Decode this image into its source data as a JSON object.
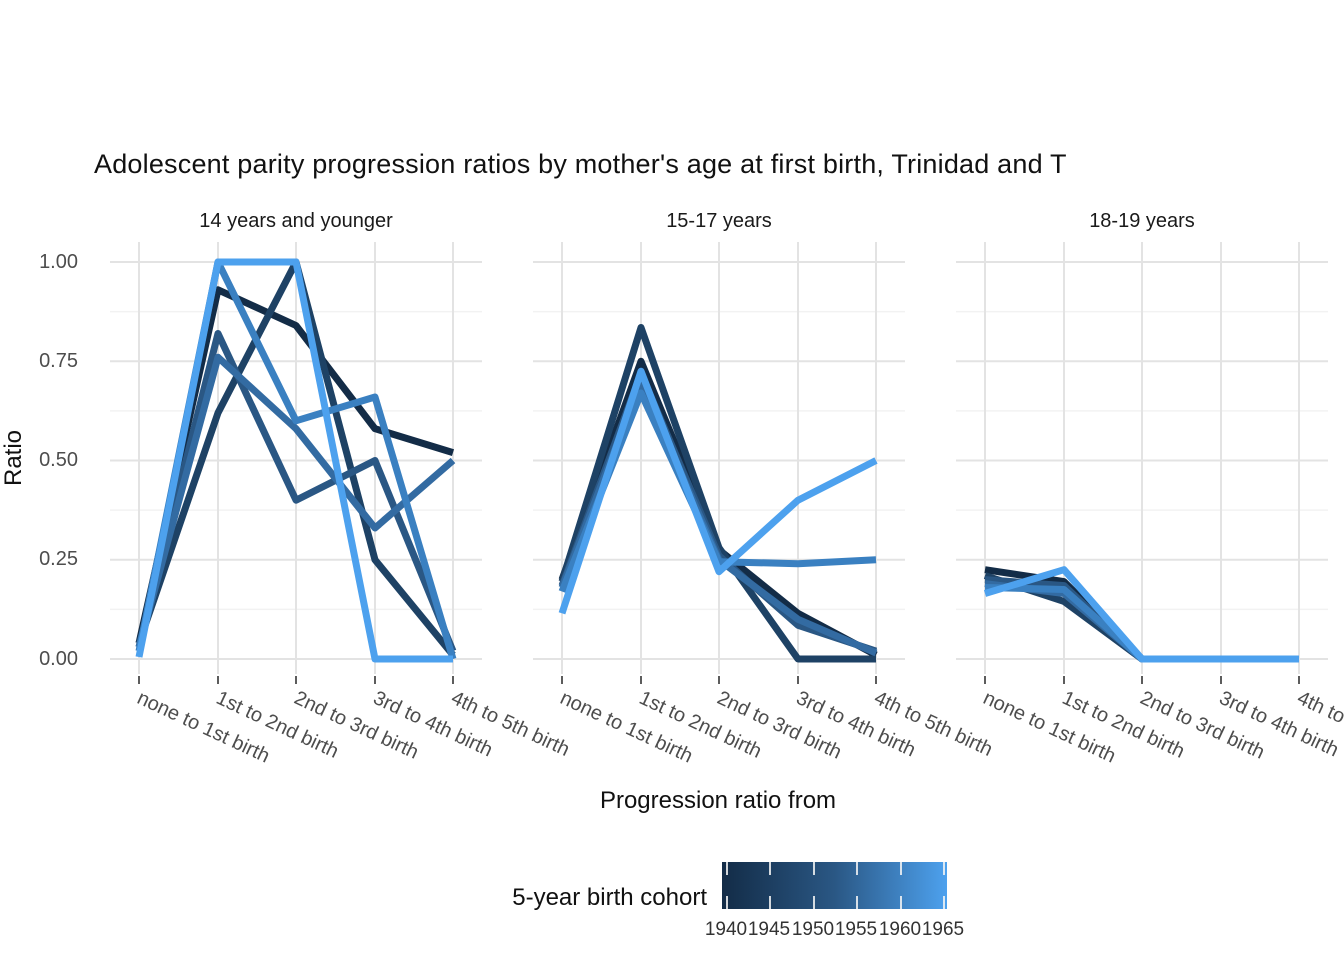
{
  "title": "Adolescent parity progression ratios by mother's age at first birth,  Trinidad and T",
  "y_axis": {
    "label": "Ratio",
    "tick_labels": [
      "1.00",
      "0.75",
      "0.50",
      "0.25",
      "0.00"
    ]
  },
  "x_axis": {
    "label": "Progression ratio from"
  },
  "legend": {
    "title": "5-year birth cohort",
    "tick_labels": [
      "1940",
      "1945",
      "1950",
      "1955",
      "1960",
      "1965"
    ]
  },
  "colors": {
    "cohort_1940": "#132c47",
    "cohort_1945": "#1e4265",
    "cohort_1950": "#2a5784",
    "cohort_1955": "#336ba2",
    "cohort_1960": "#3a80c1",
    "cohort_1965": "#4da1ee",
    "grid_major": "#e3e3e3",
    "grid_minor": "#f2f2f2",
    "tick_mark": "#333333",
    "colorbar_gradient": [
      "#132c47",
      "#2a5784",
      "#4da1ee"
    ]
  },
  "chart_data": {
    "type": "line",
    "title": "Adolescent parity progression ratios by mother's age at first birth,  Trinidad and T",
    "xlabel": "Progression ratio from",
    "ylabel": "Ratio",
    "ylim": [
      0,
      1.0
    ],
    "yticks": [
      0.0,
      0.25,
      0.5,
      0.75,
      1.0
    ],
    "grid": "major and minor horizontal, major vertical, light gray on white",
    "legend_title": "5-year birth cohort",
    "legend_type": "continuous colorbar, dark navy 1940 to light blue 1965, below plot",
    "categories": [
      "none to 1st birth",
      "1st to 2nd birth",
      "2nd to 3rd birth",
      "3rd to 4th birth",
      "4th to 5th birth"
    ],
    "cohorts": [
      "1940",
      "1945",
      "1950",
      "1955",
      "1960",
      "1965"
    ],
    "facets": [
      {
        "label": "14 years and younger",
        "series": [
          {
            "name": "1940",
            "values": [
              0.04,
              0.93,
              0.84,
              0.58,
              0.52
            ]
          },
          {
            "name": "1945",
            "values": [
              0.04,
              0.62,
              1.0,
              0.25,
              0.01
            ]
          },
          {
            "name": "1950",
            "values": [
              0.03,
              0.82,
              0.4,
              0.5,
              0.02
            ]
          },
          {
            "name": "1955",
            "values": [
              0.03,
              0.76,
              0.58,
              0.33,
              0.5
            ]
          },
          {
            "name": "1960",
            "values": [
              0.02,
              1.0,
              0.6,
              0.66,
              0.0
            ]
          },
          {
            "name": "1965",
            "values": [
              0.005,
              1.0,
              1.0,
              0.0,
              0.0
            ]
          }
        ]
      },
      {
        "label": "15-17 years",
        "series": [
          {
            "name": "1940",
            "values": [
              0.2,
              0.75,
              0.275,
              0.115,
              0.01
            ]
          },
          {
            "name": "1945",
            "values": [
              0.195,
              0.835,
              0.28,
              0.0,
              0.0
            ]
          },
          {
            "name": "1950",
            "values": [
              0.185,
              0.72,
              0.26,
              0.085,
              0.02
            ]
          },
          {
            "name": "1955",
            "values": [
              0.18,
              0.7,
              0.25,
              0.1,
              0.015
            ]
          },
          {
            "name": "1960",
            "values": [
              0.17,
              0.67,
              0.245,
              0.24,
              0.25
            ]
          },
          {
            "name": "1965",
            "values": [
              0.115,
              0.725,
              0.22,
              0.4,
              0.5
            ]
          }
        ]
      },
      {
        "label": "18-19 years",
        "series": [
          {
            "name": "1940",
            "values": [
              0.225,
              0.195,
              0.0,
              0.0,
              0.0
            ]
          },
          {
            "name": "1945",
            "values": [
              0.21,
              0.145,
              0.0,
              0.0,
              0.0
            ]
          },
          {
            "name": "1950",
            "values": [
              0.2,
              0.185,
              0.0,
              0.0,
              0.0
            ]
          },
          {
            "name": "1955",
            "values": [
              0.19,
              0.165,
              0.0,
              0.0,
              0.0
            ]
          },
          {
            "name": "1960",
            "values": [
              0.18,
              0.175,
              0.0,
              0.0,
              0.0
            ]
          },
          {
            "name": "1965",
            "values": [
              0.165,
              0.225,
              0.0,
              0.0,
              0.0
            ]
          }
        ]
      }
    ]
  }
}
